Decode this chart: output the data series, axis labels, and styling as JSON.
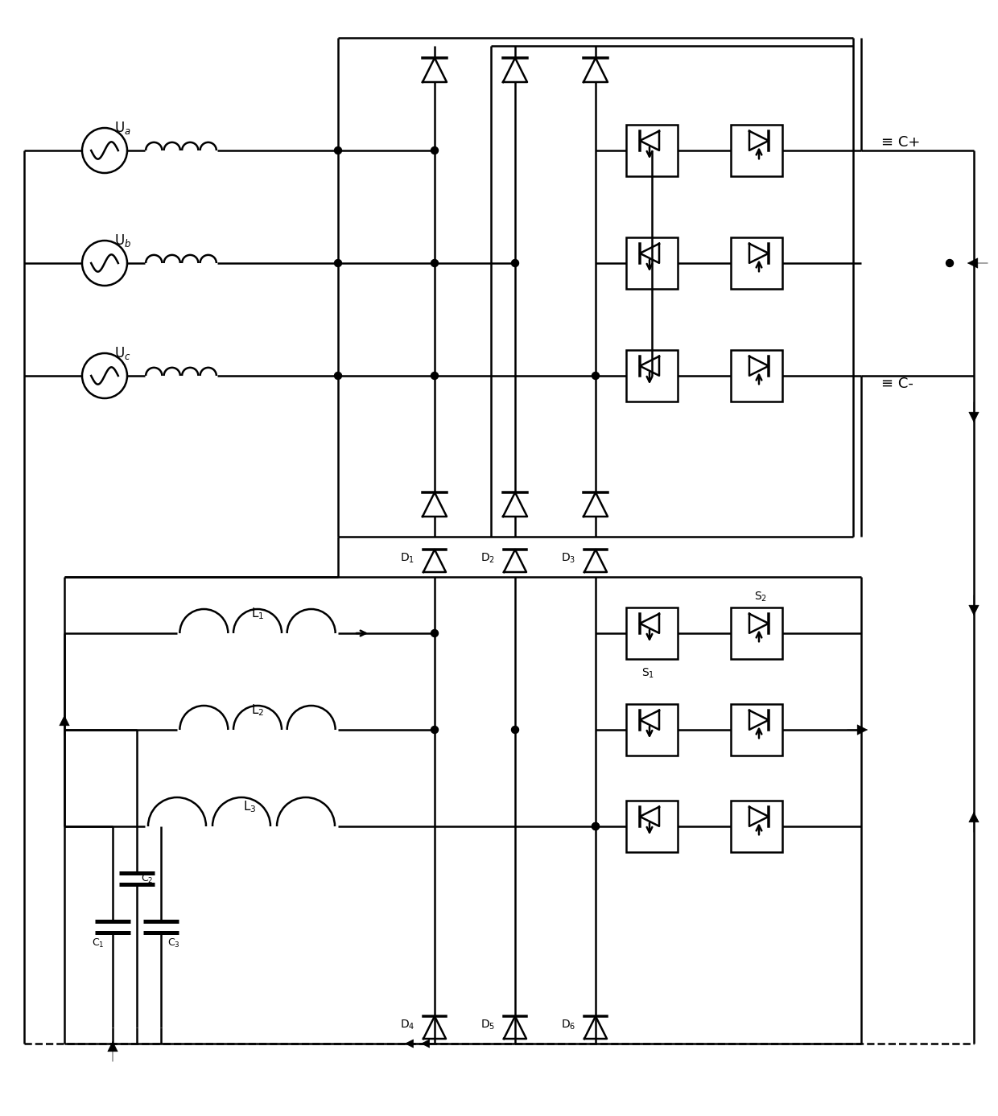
{
  "bg_color": "#ffffff",
  "line_color": "#000000",
  "lw": 1.8,
  "lw_thick": 2.5,
  "fig_width": 12.4,
  "fig_height": 13.87,
  "dpi": 100
}
